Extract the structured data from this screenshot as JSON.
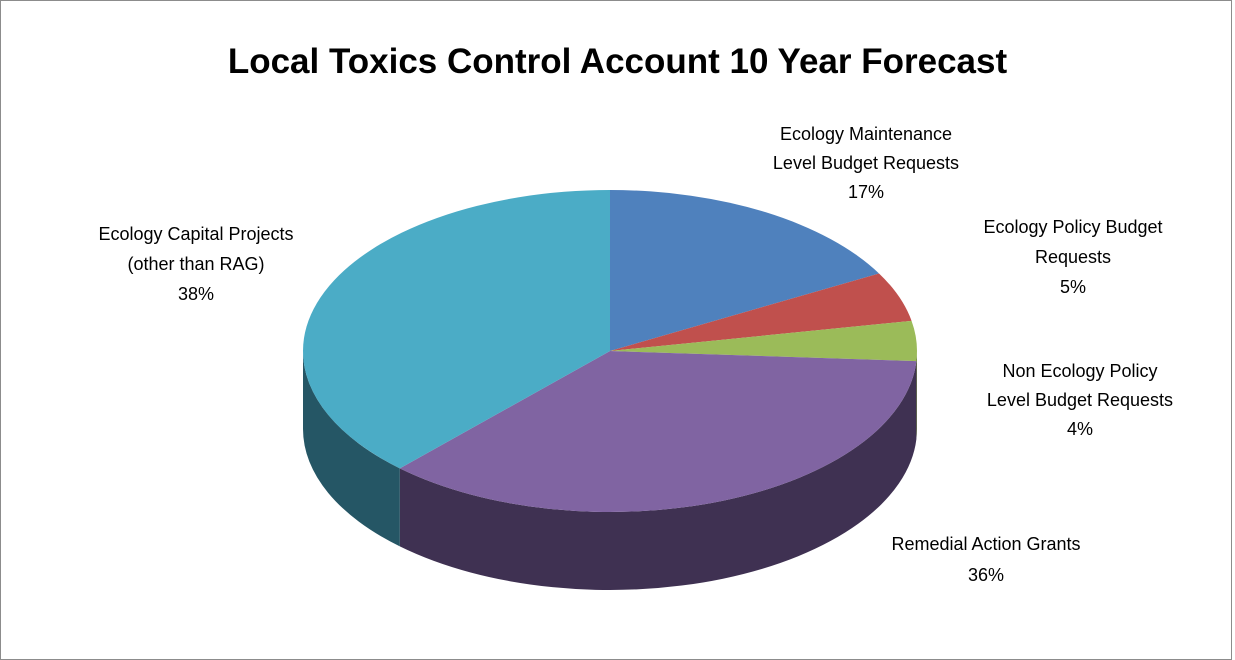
{
  "chart_data": {
    "type": "pie",
    "style": "3d",
    "title": "Local Toxics Control Account 10 Year Forecast",
    "slices": [
      {
        "name": "Ecology Maintenance Level Budget Requests",
        "label_lines": [
          "Ecology Maintenance",
          "Level Budget Requests",
          "17%"
        ],
        "percent": 17,
        "color": "#4f81bd",
        "side_color": "#2c4a6e"
      },
      {
        "name": "Ecology Policy Budget Requests",
        "label_lines": [
          "Ecology Policy Budget",
          "Requests",
          "5%"
        ],
        "percent": 5,
        "color": "#c0504d",
        "side_color": "#6e2c2a"
      },
      {
        "name": "Non Ecology Policy Level Budget Requests",
        "label_lines": [
          "Non Ecology Policy",
          "Level Budget Requests",
          "4%"
        ],
        "percent": 4,
        "color": "#9bbb59",
        "side_color": "#566a2f"
      },
      {
        "name": "Remedial Action Grants",
        "label_lines": [
          "Remedial Action Grants",
          "36%"
        ],
        "percent": 36,
        "color": "#8064a2",
        "side_color": "#3f3152"
      },
      {
        "name": "Ecology Capital Projects (other than RAG)",
        "label_lines": [
          "Ecology Capital Projects",
          "(other than RAG)",
          "38%"
        ],
        "percent": 38,
        "color": "#4bacc6",
        "side_color": "#255665"
      }
    ]
  }
}
